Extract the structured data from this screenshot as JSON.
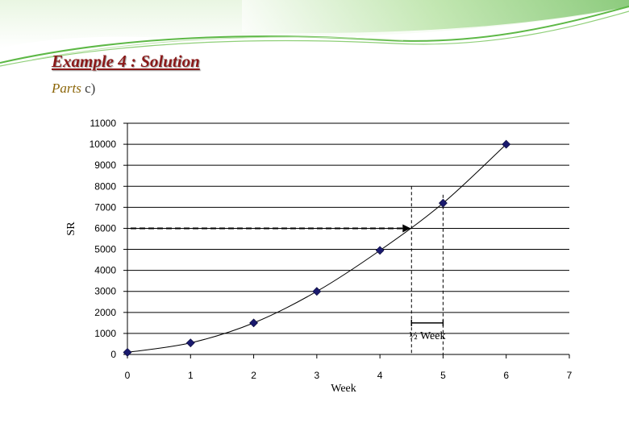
{
  "slide": {
    "title": "Example 4 : Solution",
    "parts_label": "Parts",
    "parts_value": "c)"
  },
  "colors": {
    "title": "#8b1a1a",
    "marker": "#1a1a6e",
    "banner_green": "#6cc24a"
  },
  "chart_data": {
    "type": "scatter",
    "title": "",
    "xlabel": "Week",
    "ylabel": "SR",
    "xlim": [
      0,
      7
    ],
    "ylim": [
      0,
      11000
    ],
    "xticks": [
      0,
      1,
      2,
      3,
      4,
      5,
      6,
      7
    ],
    "yticks": [
      0,
      1000,
      2000,
      3000,
      4000,
      5000,
      6000,
      7000,
      8000,
      9000,
      10000,
      11000
    ],
    "grid": "horizontal",
    "series": [
      {
        "x": [
          0,
          1,
          2,
          3,
          4,
          5,
          6
        ],
        "y": [
          100,
          550,
          1500,
          3000,
          4950,
          7200,
          10000
        ]
      }
    ],
    "annotations": {
      "target_sr": 6000,
      "read_week": 4.5,
      "reference_week": 5,
      "interval_label": "½ Week"
    }
  }
}
